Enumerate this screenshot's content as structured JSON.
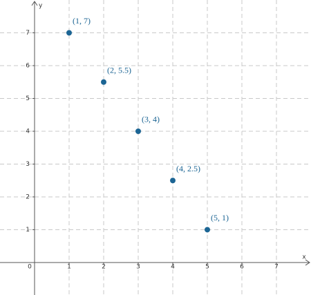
{
  "chart_data": {
    "type": "scatter",
    "x_label": "x",
    "y_label": "y",
    "x": [
      1,
      2,
      3,
      4,
      5
    ],
    "values": [
      7,
      5.5,
      4,
      2.5,
      1
    ],
    "value_labels": [
      "(1, 7)",
      "(2, 5.5)",
      "(3, 4)",
      "(4, 2.5)",
      "(5, 1)"
    ],
    "color": "#1c6594",
    "xlim": [
      -1,
      8
    ],
    "ylim": [
      -0.99,
      8
    ],
    "xticks": [
      0,
      1,
      2,
      3,
      4,
      5,
      6,
      7
    ],
    "yticks": [
      1,
      2,
      3,
      4,
      5,
      6,
      7
    ],
    "grid": true
  }
}
